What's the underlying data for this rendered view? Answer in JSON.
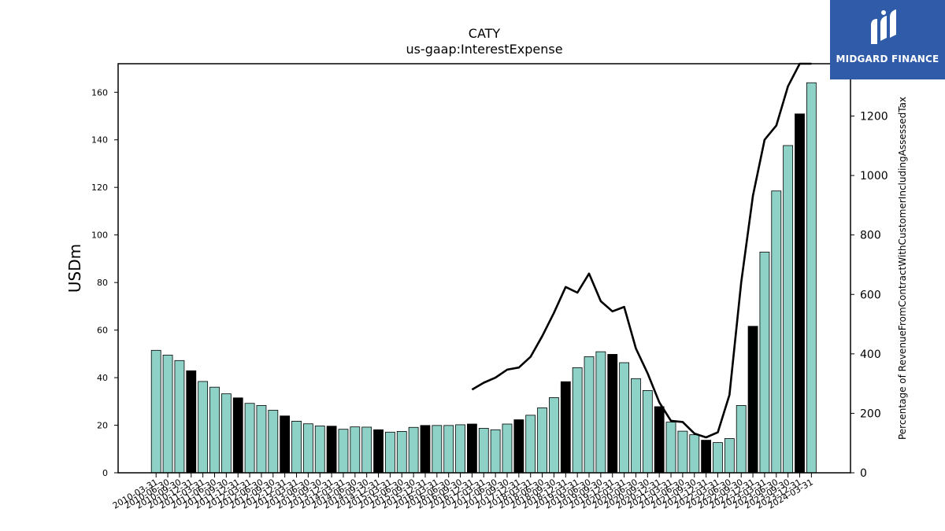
{
  "chart_data": {
    "type": "bar",
    "title": "CATY",
    "subtitle": "us-gaap:InterestExpense",
    "ylabel": "USDm",
    "y2label": "Percentage of RevenueFromContractWithCustomerIncludingAssessedTax",
    "ylim": [
      0,
      172
    ],
    "y2lim": [
      0,
      1376
    ],
    "yticks": [
      0,
      20,
      40,
      60,
      80,
      100,
      120,
      140,
      160
    ],
    "y2ticks": [
      0,
      200,
      400,
      600,
      800,
      1000,
      1200
    ],
    "categories": [
      "2010-03-31",
      "2010-06-30",
      "2010-09-30",
      "2010-12-31",
      "2011-03-31",
      "2011-06-30",
      "2011-09-30",
      "2011-12-31",
      "2012-03-31",
      "2012-06-30",
      "2012-09-30",
      "2012-12-31",
      "2013-03-31",
      "2013-06-30",
      "2013-09-30",
      "2013-12-31",
      "2014-03-31",
      "2014-06-30",
      "2014-09-30",
      "2014-12-31",
      "2015-03-31",
      "2015-06-30",
      "2015-09-30",
      "2015-12-31",
      "2016-03-31",
      "2016-06-30",
      "2016-09-30",
      "2016-12-31",
      "2017-03-31",
      "2017-06-30",
      "2017-09-30",
      "2017-12-31",
      "2018-03-31",
      "2018-06-30",
      "2018-09-30",
      "2018-12-31",
      "2019-03-31",
      "2019-06-30",
      "2019-09-30",
      "2019-12-31",
      "2020-03-31",
      "2020-06-30",
      "2020-09-30",
      "2020-12-31",
      "2021-03-31",
      "2021-06-30",
      "2021-09-30",
      "2021-12-31",
      "2022-03-31",
      "2022-06-30",
      "2022-09-30",
      "2022-12-31",
      "2023-03-31",
      "2023-06-30",
      "2023-09-30",
      "2023-12-31",
      "2024-03-31"
    ],
    "series": [
      {
        "type": "bar",
        "values": [
          51.5,
          49.5,
          47.2,
          42.9,
          38.4,
          36.0,
          33.2,
          31.5,
          29.2,
          28.3,
          26.3,
          23.9,
          21.7,
          20.6,
          19.7,
          19.6,
          18.3,
          19.3,
          19.2,
          18.1,
          17.1,
          17.4,
          19.1,
          19.9,
          19.9,
          19.9,
          20.2,
          20.5,
          18.7,
          18.1,
          20.5,
          22.3,
          24.2,
          27.3,
          31.6,
          38.3,
          44.2,
          48.8,
          50.9,
          49.8,
          46.3,
          39.6,
          34.6,
          27.8,
          21.3,
          17.5,
          16.0,
          13.7,
          12.7,
          14.4,
          28.3,
          61.6,
          92.8,
          118.5,
          137.6,
          150.9,
          164.0
        ],
        "colors": [
          "#8ed1c6",
          "#8ed1c6",
          "#8ed1c6",
          "#000000",
          "#8ed1c6",
          "#8ed1c6",
          "#8ed1c6",
          "#000000",
          "#8ed1c6",
          "#8ed1c6",
          "#8ed1c6",
          "#000000",
          "#8ed1c6",
          "#8ed1c6",
          "#8ed1c6",
          "#000000",
          "#8ed1c6",
          "#8ed1c6",
          "#8ed1c6",
          "#000000",
          "#8ed1c6",
          "#8ed1c6",
          "#8ed1c6",
          "#000000",
          "#8ed1c6",
          "#8ed1c6",
          "#8ed1c6",
          "#000000",
          "#8ed1c6",
          "#8ed1c6",
          "#8ed1c6",
          "#000000",
          "#8ed1c6",
          "#8ed1c6",
          "#8ed1c6",
          "#000000",
          "#8ed1c6",
          "#8ed1c6",
          "#8ed1c6",
          "#000000",
          "#8ed1c6",
          "#8ed1c6",
          "#8ed1c6",
          "#000000",
          "#8ed1c6",
          "#8ed1c6",
          "#8ed1c6",
          "#000000",
          "#8ed1c6",
          "#8ed1c6",
          "#8ed1c6",
          "#000000",
          "#8ed1c6",
          "#8ed1c6",
          "#8ed1c6",
          "#000000",
          "#8ed1c6"
        ]
      },
      {
        "type": "line",
        "axis": "right",
        "color": "#000000",
        "values": [
          null,
          null,
          null,
          null,
          null,
          null,
          null,
          null,
          null,
          null,
          null,
          null,
          null,
          null,
          null,
          null,
          null,
          null,
          null,
          null,
          null,
          null,
          null,
          null,
          null,
          null,
          null,
          280,
          303,
          320,
          347,
          354,
          390,
          460,
          538,
          625,
          606,
          670,
          577,
          543,
          558,
          418,
          335,
          237,
          175,
          171,
          132,
          119,
          136,
          262,
          640,
          932,
          1120,
          1168,
          1300,
          1378,
          1378
        ]
      }
    ]
  },
  "logo": {
    "text": "MIDGARD FINANCE",
    "color": "#2f5ba8"
  }
}
